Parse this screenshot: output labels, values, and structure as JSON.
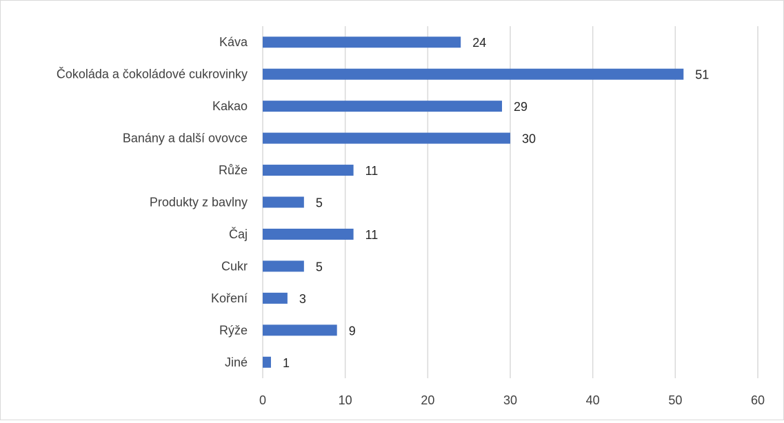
{
  "chart_data": {
    "type": "bar",
    "orientation": "horizontal",
    "categories": [
      "Káva",
      "Čokoláda a čokoládové cukrovinky",
      "Kakao",
      "Banány a další ovovce",
      "Růže",
      "Produkty z bavlny",
      "Čaj",
      "Cukr",
      "Koření",
      "Rýže",
      "Jiné"
    ],
    "values": [
      24,
      51,
      29,
      30,
      11,
      5,
      11,
      5,
      3,
      9,
      1
    ],
    "data_labels": [
      "24",
      "51",
      "29",
      "30",
      "11",
      "5",
      "11",
      "5",
      "3",
      "9",
      "1"
    ],
    "title": "",
    "xlabel": "",
    "ylabel": "",
    "xlim": [
      0,
      60
    ],
    "xticks": [
      0,
      10,
      20,
      30,
      40,
      50,
      60
    ],
    "xtick_labels": [
      "0",
      "10",
      "20",
      "30",
      "40",
      "50",
      "60"
    ],
    "grid": "vertical",
    "legend": "none",
    "bar_color": "#4472c4",
    "grid_color": "#d9d9d9"
  }
}
